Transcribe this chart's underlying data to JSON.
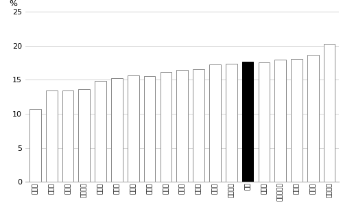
{
  "categories": [
    "福岡市",
    "札幌市",
    "横浜市",
    "北九州市",
    "大阪市",
    "仙台市",
    "新潟市",
    "広島市",
    "京都市",
    "神戸市",
    "静岡市",
    "浜松市",
    "名古屋市",
    "堺市",
    "千葉市",
    "さいたま市",
    "川崎市",
    "岡山市",
    "相模原市"
  ],
  "values": [
    10.7,
    13.4,
    13.4,
    13.6,
    14.8,
    15.2,
    15.6,
    15.5,
    16.1,
    16.4,
    16.5,
    17.3,
    17.4,
    17.7,
    17.6,
    18.0,
    18.1,
    18.7,
    20.3
  ],
  "highlight_index": 13,
  "bar_color_normal": "#ffffff",
  "bar_color_highlight": "#000000",
  "bar_edge_color": "#888888",
  "ylabel": "%",
  "ylim": [
    0,
    25
  ],
  "yticks": [
    0,
    5,
    10,
    15,
    20,
    25
  ],
  "background_color": "#ffffff",
  "grid_color": "#cccccc",
  "label_fontsize": 6.5,
  "ylabel_fontsize": 9,
  "ytick_fontsize": 8
}
